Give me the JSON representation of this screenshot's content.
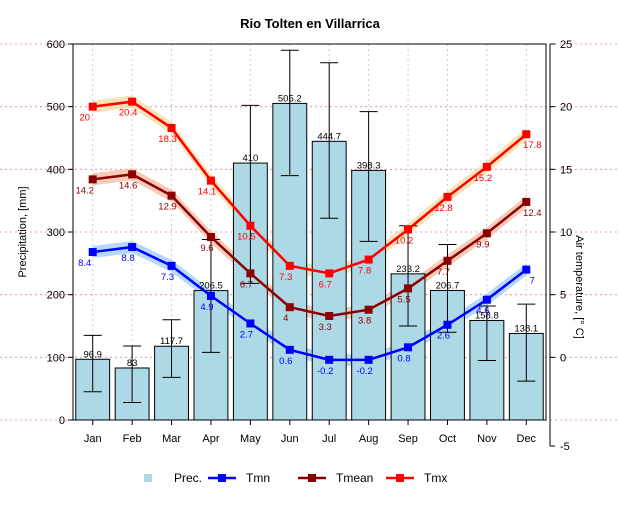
{
  "chart_data": {
    "type": "bar",
    "title": "Rio Tolten en Villarrica",
    "ylabel": "Precipitation, [mm]",
    "y2label": "Air temperature, [° C]",
    "categories": [
      "Jan",
      "Feb",
      "Mar",
      "Apr",
      "May",
      "Jun",
      "Jul",
      "Aug",
      "Sep",
      "Oct",
      "Nov",
      "Dec"
    ],
    "ylim": [
      0,
      600
    ],
    "y_ticks": [
      0,
      100,
      200,
      300,
      400,
      500,
      600
    ],
    "y2lim": [
      -5,
      25
    ],
    "y2_ticks": [
      -5,
      0,
      5,
      10,
      15,
      20,
      25
    ],
    "grid": true,
    "precipitation": {
      "name": "Prec.",
      "values": [
        96.9,
        83,
        117.7,
        206.5,
        410,
        505.2,
        444.7,
        398.3,
        233.2,
        206.7,
        158.8,
        138.1
      ],
      "labels": [
        "96.9",
        "83",
        "117.7",
        "206.5",
        "410",
        "505.2",
        "444.7",
        "398.3",
        "233.2",
        "206.7",
        "158.8",
        "138.1"
      ],
      "err_low": [
        45,
        28,
        68,
        108,
        218,
        390,
        322,
        285,
        150,
        140,
        95,
        62
      ],
      "err_high": [
        135,
        118,
        160,
        288,
        502,
        590,
        570,
        492,
        310,
        280,
        182,
        185
      ],
      "color": "#add8e6"
    },
    "series": [
      {
        "name": "Tmn",
        "values": [
          8.4,
          8.8,
          7.3,
          4.9,
          2.7,
          0.6,
          -0.2,
          -0.2,
          0.8,
          2.6,
          4.6,
          7.0
        ],
        "labels": [
          "8.4",
          "8.8",
          "7.3",
          "4.9",
          "2.7",
          "0.6",
          "-0.2",
          "-0.2",
          "0.8",
          "2.6",
          "4.6",
          "7"
        ],
        "color": "#0000ff",
        "band": "#99ccff"
      },
      {
        "name": "Tmean",
        "values": [
          14.2,
          14.6,
          12.9,
          9.6,
          6.7,
          4.0,
          3.3,
          3.8,
          5.5,
          7.7,
          9.9,
          12.4
        ],
        "labels": [
          "14.2",
          "14.6",
          "12.9",
          "9.6",
          "6.7",
          "4",
          "3.3",
          "3.8",
          "5.5",
          "7.7",
          "9.9",
          "12.4"
        ],
        "color": "#8b0000",
        "band": "#f4b8a0"
      },
      {
        "name": "Tmx",
        "values": [
          20.0,
          20.4,
          18.3,
          14.1,
          10.5,
          7.3,
          6.7,
          7.8,
          10.2,
          12.8,
          15.2,
          17.8
        ],
        "labels": [
          "20",
          "20.4",
          "18.3",
          "14.1",
          "10.5",
          "7.3",
          "6.7",
          "7.8",
          "10.2",
          "12.8",
          "15.2",
          "17.8"
        ],
        "color": "#ff0000",
        "band": "#f6d9a0"
      }
    ],
    "legend": [
      "Prec.",
      "Tmn",
      "Tmean",
      "Tmx"
    ],
    "legend_position": "bottom"
  }
}
